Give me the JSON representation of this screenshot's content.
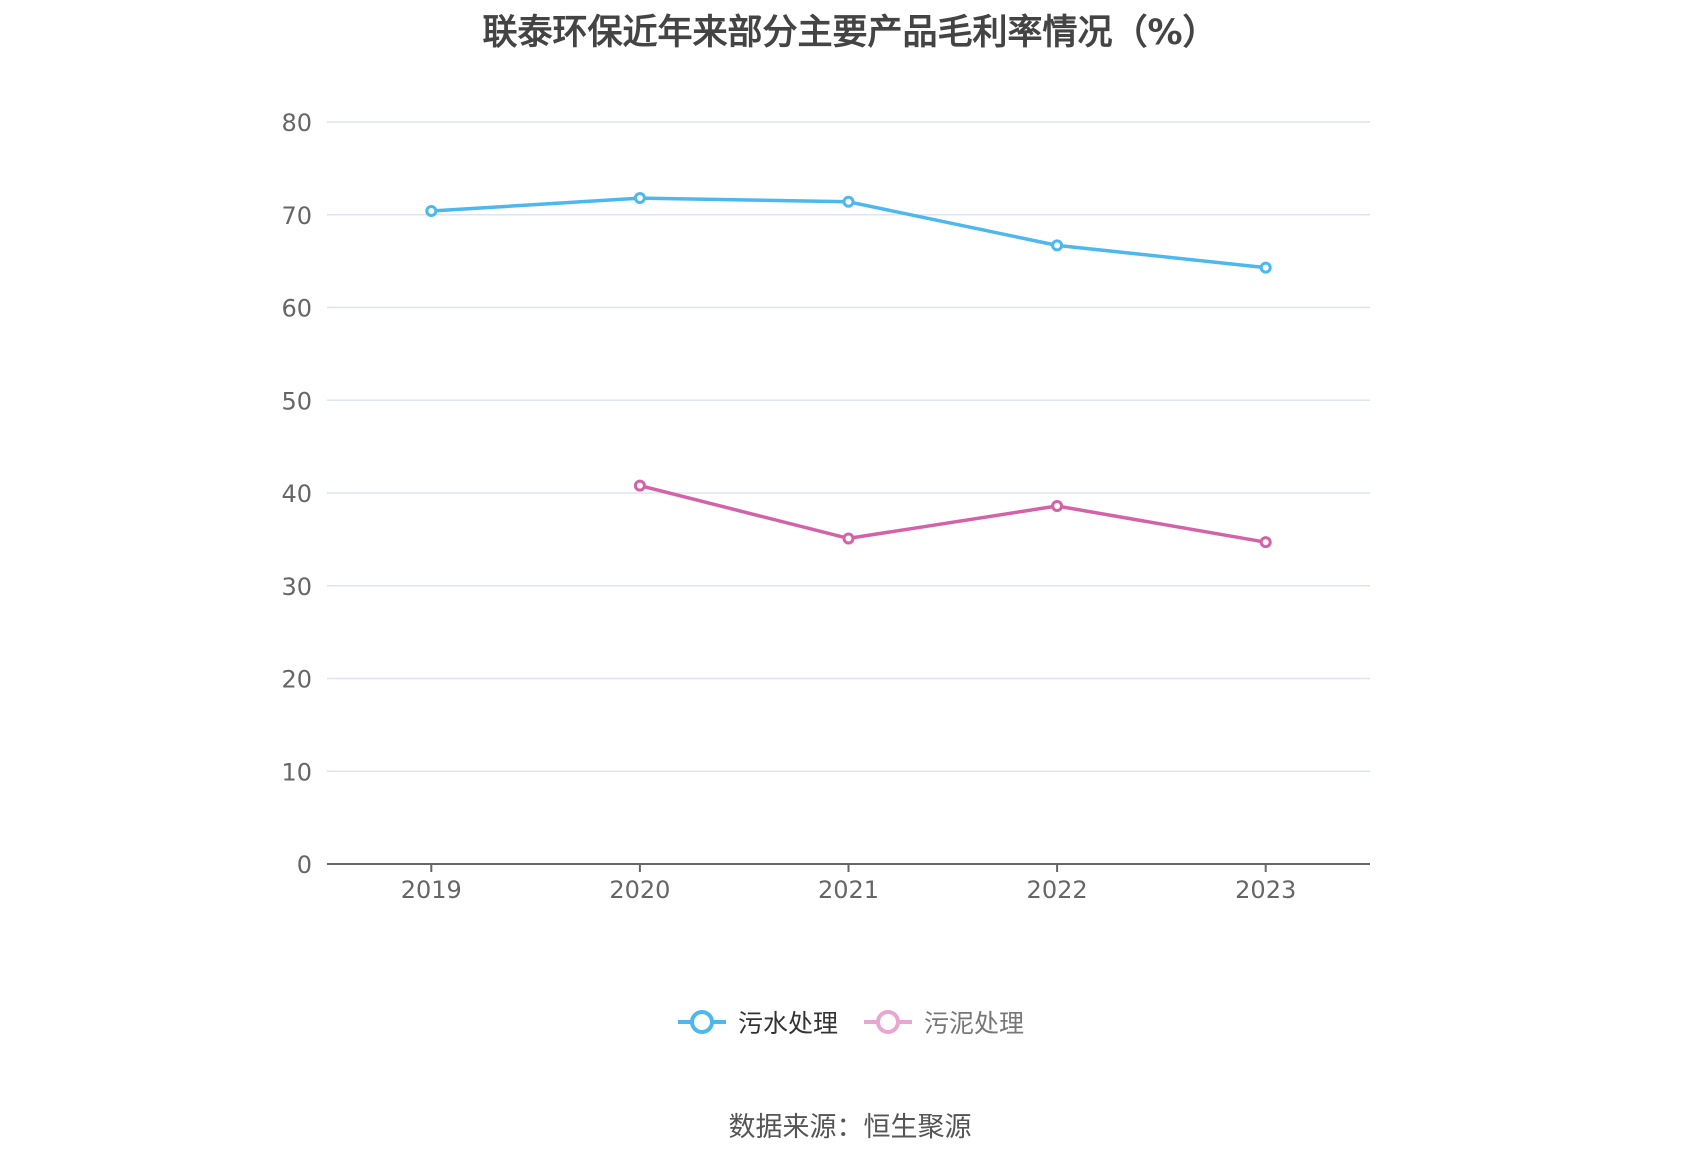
{
  "chart_data": {
    "type": "line",
    "title": "联泰环保近年来部分主要产品毛利率情况（%）",
    "categories": [
      "2019",
      "2020",
      "2021",
      "2022",
      "2023"
    ],
    "ylim": [
      0,
      80
    ],
    "yticks": [
      0,
      10,
      20,
      30,
      40,
      50,
      60,
      70,
      80
    ],
    "grid": true,
    "legend_position": "bottom",
    "series": [
      {
        "name": "污水处理",
        "color": "#4cb8ee",
        "values": [
          70.4,
          71.8,
          71.4,
          66.7,
          64.3
        ]
      },
      {
        "name": "污泥处理",
        "color": "#d462a8",
        "legend_color": "#e8a6d0",
        "values": [
          null,
          40.8,
          35.1,
          38.6,
          34.7
        ]
      }
    ]
  },
  "source": "数据来源：恒生聚源"
}
